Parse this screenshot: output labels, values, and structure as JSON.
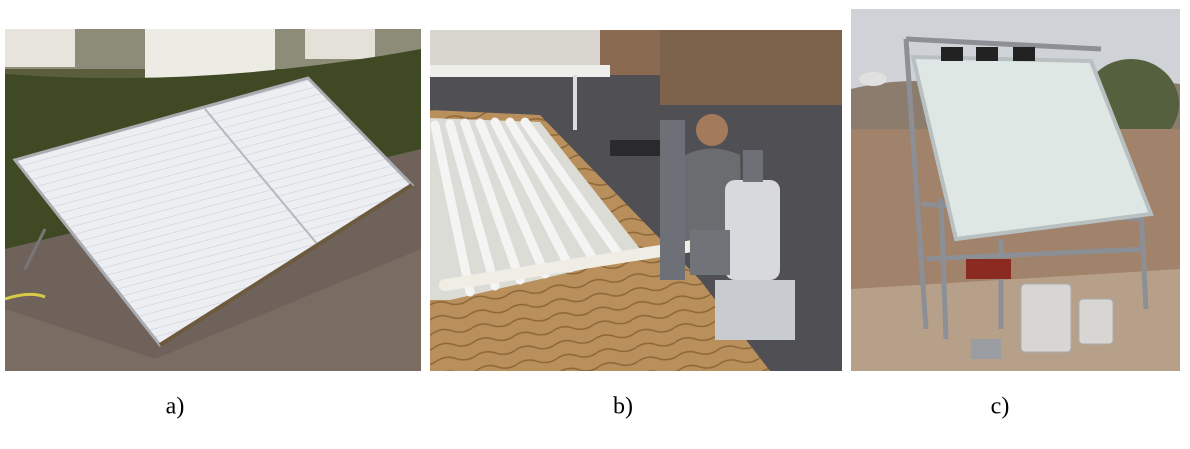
{
  "figure": {
    "panels": [
      {
        "label": "a)"
      },
      {
        "label": "b)"
      },
      {
        "label": "c)"
      }
    ]
  }
}
